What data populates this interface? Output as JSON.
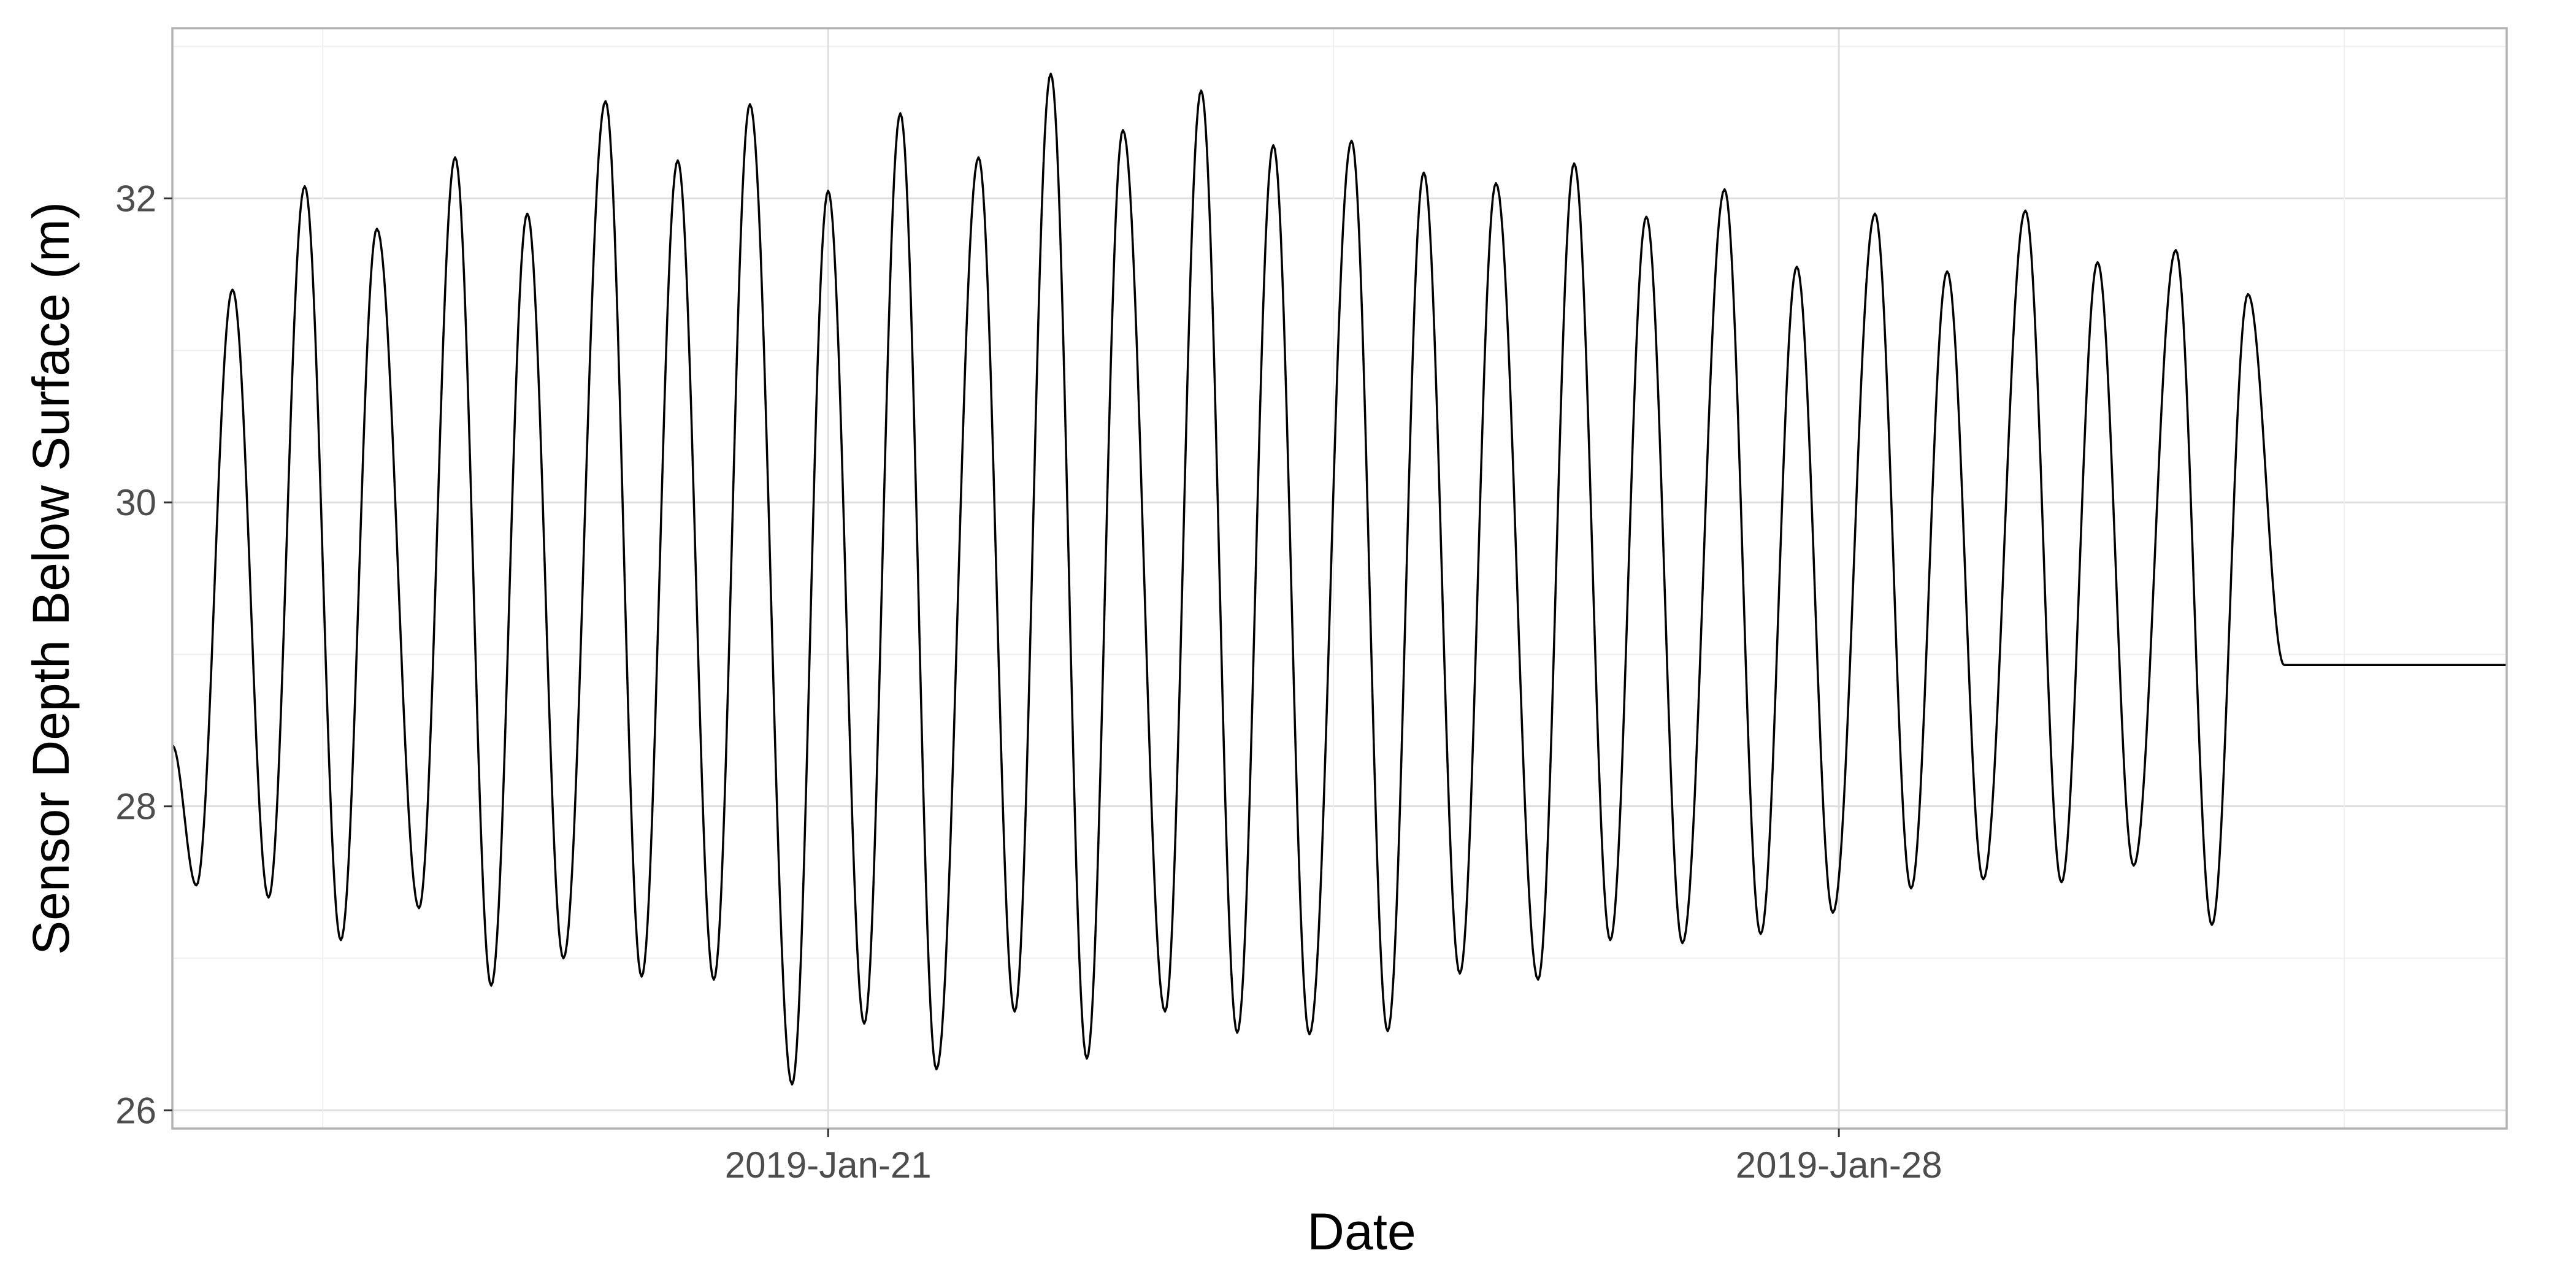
{
  "chart_data": {
    "type": "line",
    "xlabel": "Date",
    "ylabel": "Sensor Depth Below Surface (m)",
    "x_tick_labels": [
      "2019-Jan-21",
      "2019-Jan-28"
    ],
    "y_tick_labels": [
      "26",
      "28",
      "30",
      "32"
    ],
    "ylim": [
      25.88,
      33.12
    ],
    "x_start": "2019-01-16T11:00",
    "x_end": "2019-02-01T15:00",
    "grid": true,
    "legend": "none",
    "series": [
      {
        "x": [
          "2019-01-16T11:00",
          "2019-01-16T15:00",
          "2019-01-16T21:00",
          "2019-01-17T03:00",
          "2019-01-17T09:00",
          "2019-01-17T15:00",
          "2019-01-17T21:00",
          "2019-01-18T04:00",
          "2019-01-18T10:00",
          "2019-01-18T16:00",
          "2019-01-18T22:00",
          "2019-01-19T04:00",
          "2019-01-19T11:00",
          "2019-01-19T17:00",
          "2019-01-19T23:00",
          "2019-01-20T05:00",
          "2019-01-20T11:00",
          "2019-01-20T18:00",
          "2019-01-21T00:00",
          "2019-01-21T06:00",
          "2019-01-21T12:00",
          "2019-01-21T18:00",
          "2019-01-22T01:00",
          "2019-01-22T07:00",
          "2019-01-22T13:00",
          "2019-01-22T19:00",
          "2019-01-23T01:00",
          "2019-01-23T08:00",
          "2019-01-23T14:00",
          "2019-01-23T20:00",
          "2019-01-24T02:00",
          "2019-01-24T08:00",
          "2019-01-24T15:00",
          "2019-01-24T21:00",
          "2019-01-25T03:00",
          "2019-01-25T09:00",
          "2019-01-25T15:00",
          "2019-01-25T22:00",
          "2019-01-26T04:00",
          "2019-01-26T10:00",
          "2019-01-26T16:00",
          "2019-01-26T22:00",
          "2019-01-27T05:00",
          "2019-01-27T11:00",
          "2019-01-27T17:00",
          "2019-01-27T23:00",
          "2019-01-28T06:00",
          "2019-01-28T12:00",
          "2019-01-28T18:00",
          "2019-01-29T00:00",
          "2019-01-29T07:00",
          "2019-01-29T13:00",
          "2019-01-29T19:00",
          "2019-01-30T01:00",
          "2019-01-30T08:00",
          "2019-01-30T14:00",
          "2019-01-30T20:00",
          "2019-01-31T02:00",
          "2019-01-31T08:00",
          "2019-01-31T15:00",
          "2019-01-31T21:00",
          "2019-02-01T03:00",
          "2019-02-01T09:00",
          "2019-02-01T15:00"
        ],
        "values": [
          28.4,
          27.48,
          31.4,
          27.4,
          32.08,
          27.12,
          31.8,
          27.33,
          32.27,
          26.82,
          31.9,
          27.0,
          32.64,
          26.88,
          32.25,
          26.86,
          32.62,
          26.17,
          32.05,
          26.57,
          32.56,
          26.27,
          32.27,
          26.65,
          32.82,
          26.34,
          32.45,
          26.65,
          32.71,
          26.51,
          32.35,
          26.5,
          32.38,
          26.52,
          32.17,
          26.9,
          32.1,
          26.86,
          32.23,
          27.12,
          31.88,
          27.1,
          32.06,
          27.16,
          31.55,
          27.3,
          31.9,
          27.46,
          31.52,
          27.52,
          31.92,
          27.5,
          31.58,
          27.61,
          31.66,
          27.22,
          31.37,
          28.93,
          28.93,
          28.93,
          28.93,
          28.93,
          28.93,
          28.93
        ]
      }
    ]
  }
}
